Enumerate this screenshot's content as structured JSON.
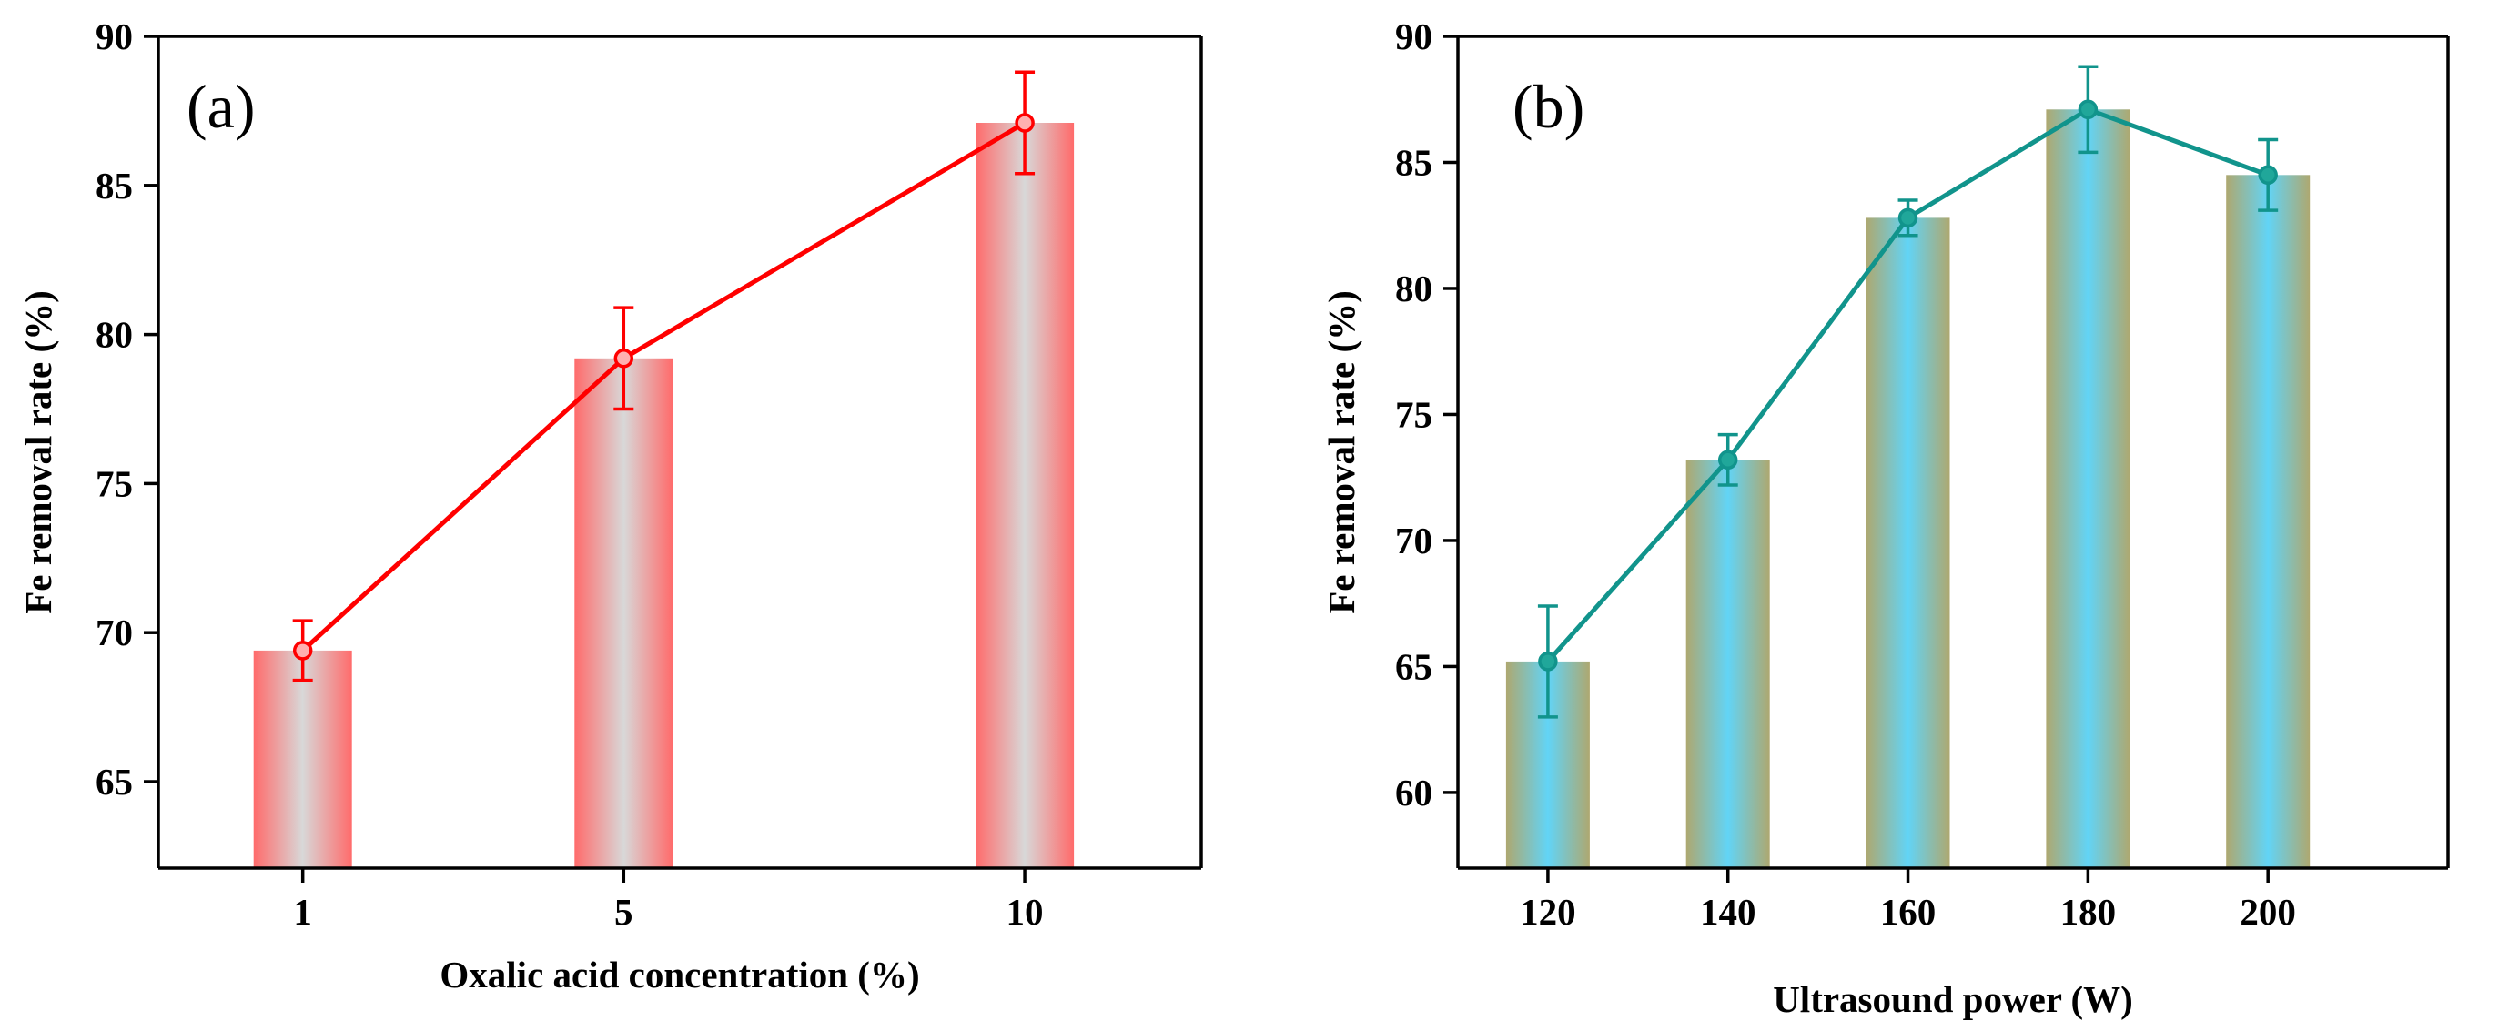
{
  "figure": {
    "background_color": "#ffffff"
  },
  "chart_data": [
    {
      "type": "bar",
      "overlay": "line",
      "panel_label": "(a)",
      "title": "",
      "xlabel": "Oxalic acid concentration (%)",
      "ylabel": "Fe removal rate (%)",
      "categories": [
        "1",
        "5",
        "10"
      ],
      "x": [
        1,
        5,
        10
      ],
      "xlim": [
        -0.8,
        12.2
      ],
      "values": [
        69.4,
        79.2,
        87.1
      ],
      "errors": [
        1.0,
        1.7,
        1.7
      ],
      "ylim": [
        62.1,
        90
      ],
      "yticks": [
        65,
        70,
        75,
        80,
        85,
        90
      ],
      "grid": false,
      "legend": "none",
      "colors": {
        "bar_edge": "#ff6b6b",
        "bar_center": "#d8d8d8",
        "line": "#ff0000",
        "marker_fill": "#ffb0b0"
      }
    },
    {
      "type": "bar",
      "overlay": "line",
      "panel_label": "(b)",
      "title": "",
      "xlabel": "Ultrasound power (W)",
      "ylabel": "Fe removal rate  (%)",
      "categories": [
        "120",
        "140",
        "160",
        "180",
        "200"
      ],
      "x": [
        120,
        140,
        160,
        180,
        200
      ],
      "xlim": [
        110,
        220
      ],
      "values": [
        65.2,
        73.2,
        82.8,
        87.1,
        84.5
      ],
      "errors": [
        2.2,
        1.0,
        0.7,
        1.7,
        1.4
      ],
      "ylim": [
        57,
        90
      ],
      "yticks": [
        60,
        65,
        70,
        75,
        80,
        85,
        90
      ],
      "grid": false,
      "legend": "none",
      "colors": {
        "bar_edge": "#aea870",
        "bar_center": "#62d4f6",
        "line": "#11948c",
        "marker_fill": "#20a79a"
      }
    }
  ]
}
